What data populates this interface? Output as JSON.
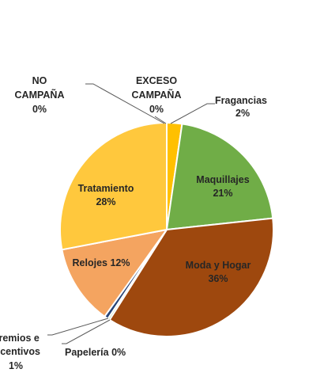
{
  "chart_data": {
    "type": "pie",
    "title": "",
    "slices": [
      {
        "label": "Fragancias",
        "percent": "2%",
        "value": 2.3,
        "color": "#ffc000"
      },
      {
        "label": "Maquillajes",
        "percent": "21%",
        "value": 21,
        "color": "#70ad47"
      },
      {
        "label": "Moda y Hogar",
        "percent": "36%",
        "value": 35.7,
        "color": "#9e480e"
      },
      {
        "label": "Papelería",
        "percent": "0%",
        "value": 0.3,
        "color": "#a9d18e"
      },
      {
        "label": "Premios e Incentivos",
        "percent": "1%",
        "value": 0.6,
        "color": "#264478"
      },
      {
        "label": "Relojes",
        "percent": "12%",
        "value": 12.1,
        "color": "#f4a460"
      },
      {
        "label": "Tratamiento",
        "percent": "28%",
        "value": 28,
        "color": "#ffc83d"
      },
      {
        "label": "NO CAMPAÑA",
        "percent": "0%",
        "value": 0,
        "color": "#5b9bd5"
      },
      {
        "label": "EXCESO CAMPAÑA",
        "percent": "0%",
        "value": 0,
        "color": "#ed7d31"
      }
    ],
    "labels": {
      "fragancias": {
        "line1": "Fragancias",
        "line2": "2%"
      },
      "maquillajes": {
        "line1": "Maquillajes",
        "line2": "21%"
      },
      "moda": {
        "line1": "Moda y Hogar",
        "line2": "36%"
      },
      "papeleria": {
        "line1": "Papelería 0%"
      },
      "premios": {
        "line1": "Premios e",
        "line2": "Incentivos",
        "line3": "1%"
      },
      "relojes": {
        "line1": "Relojes 12%"
      },
      "tratamiento": {
        "line1": "Tratamiento",
        "line2": "28%"
      },
      "no_campana": {
        "line1": "NO",
        "line2": "CAMPAÑA",
        "line3": "0%"
      },
      "exceso": {
        "line1": "EXCESO",
        "line2": "CAMPAÑA",
        "line3": "0%"
      }
    },
    "legend": "none"
  }
}
